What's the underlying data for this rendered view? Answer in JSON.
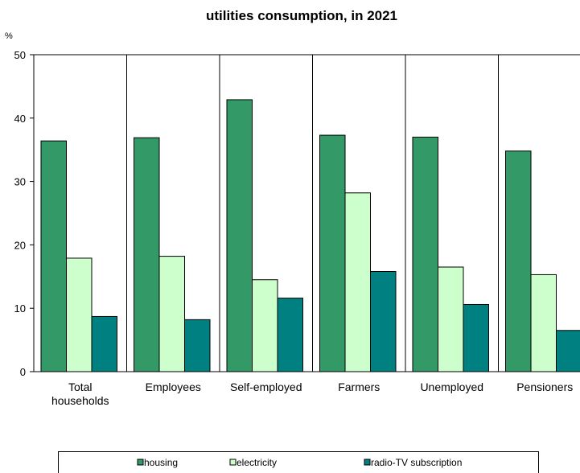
{
  "chart_data": {
    "type": "bar",
    "title_line1": "",
    "title_line2": "utilities consumption, in 2021",
    "ylabel": "%",
    "xlabel": "",
    "ylim": [
      0,
      50
    ],
    "yticks": [
      0,
      10,
      20,
      30,
      40,
      50
    ],
    "grid": "vertical category separators",
    "categories": [
      [
        "Total",
        "households"
      ],
      [
        "Employees"
      ],
      [
        "Self-employed"
      ],
      [
        "Farmers"
      ],
      [
        "Unemployed"
      ],
      [
        "Pensioners"
      ]
    ],
    "series": [
      {
        "name": "housing",
        "color": "#339966",
        "values": [
          36.4,
          36.9,
          42.9,
          37.3,
          37.0,
          34.8
        ]
      },
      {
        "name": "electricity",
        "color": "#CCFFCC",
        "values": [
          17.9,
          18.2,
          14.5,
          28.2,
          16.5,
          15.3
        ]
      },
      {
        "name": "radio-TV subscription",
        "color": "#008080",
        "values": [
          8.7,
          8.2,
          11.6,
          15.8,
          10.6,
          6.5
        ]
      }
    ],
    "legend_position": "bottom"
  }
}
